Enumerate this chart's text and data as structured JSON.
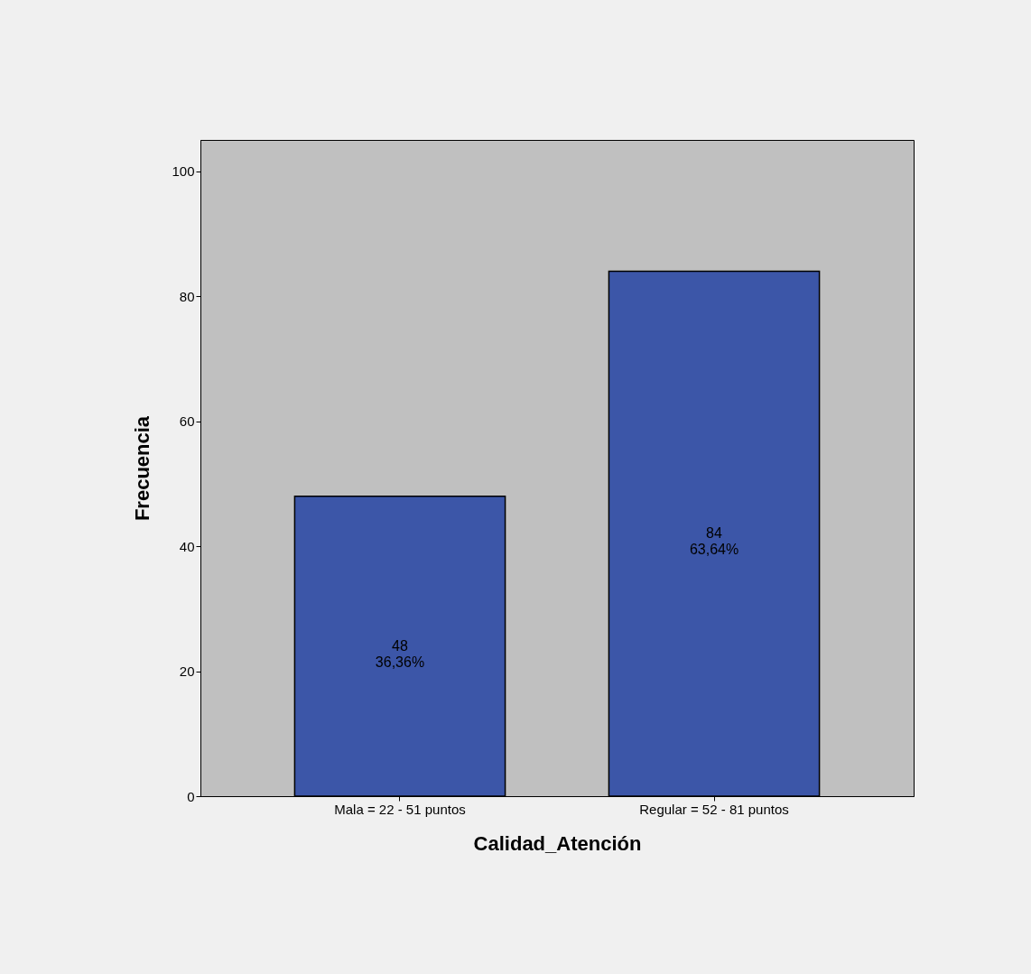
{
  "chart_data": {
    "type": "bar",
    "xlabel": "Calidad_Atención",
    "ylabel": "Frecuencia",
    "categories": [
      "Mala = 22 - 51 puntos",
      "Regular = 52 - 81 puntos"
    ],
    "values": [
      48,
      84
    ],
    "color": "#3c56a8",
    "value_labels": [
      "48\n36,36%",
      "84\n63,64%"
    ],
    "ylim": [
      0,
      105
    ],
    "yticks": [
      0,
      20,
      40,
      60,
      80,
      100
    ],
    "grid": false
  }
}
